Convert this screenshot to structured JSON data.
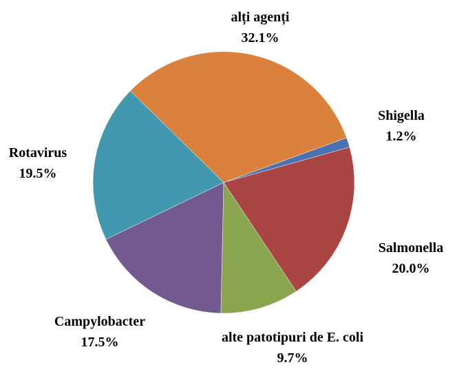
{
  "chart_data": {
    "type": "pie",
    "categories": [
      "Shigella",
      "Salmonella",
      "alte patotipuri de E. coli",
      "Campylobacter",
      "Rotavirus",
      "alți agenți"
    ],
    "values": [
      1.2,
      20.0,
      9.7,
      17.5,
      19.5,
      32.1
    ],
    "value_labels": [
      "1.2%",
      "20.0%",
      "9.7%",
      "17.5%",
      "19.5%",
      "32.1%"
    ],
    "colors": [
      "#4a72b0",
      "#a94543",
      "#8aa54e",
      "#725a8f",
      "#4298ae",
      "#d9813d"
    ]
  }
}
